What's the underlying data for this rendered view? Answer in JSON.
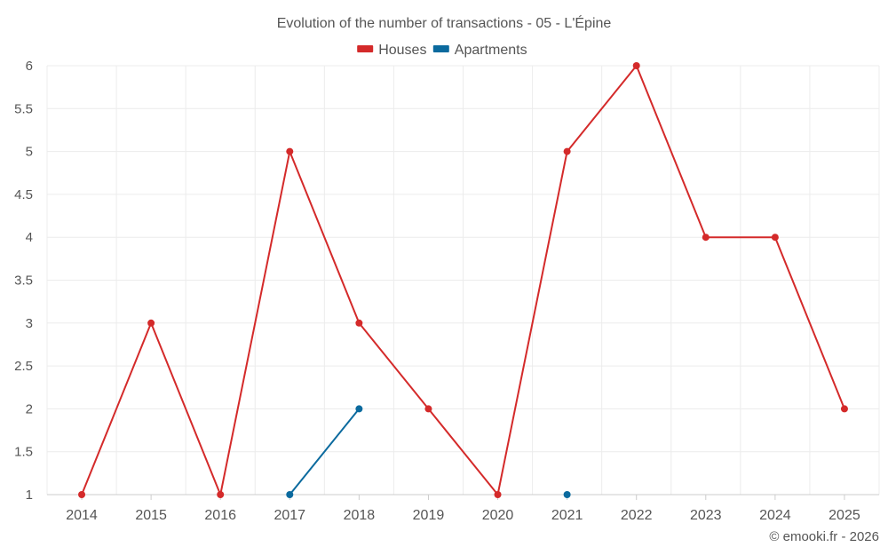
{
  "chart_data": {
    "type": "line",
    "title": "Evolution of the number of transactions - 05 - L'Épine",
    "categories": [
      "2014",
      "2015",
      "2016",
      "2017",
      "2018",
      "2019",
      "2020",
      "2021",
      "2022",
      "2023",
      "2024",
      "2025"
    ],
    "y_ticks": [
      "1",
      "1.5",
      "2",
      "2.5",
      "3",
      "3.5",
      "4",
      "4.5",
      "5",
      "5.5",
      "6"
    ],
    "ylim": [
      1,
      6
    ],
    "xlabel": "",
    "ylabel": "",
    "legend_position": "top-center",
    "series": [
      {
        "name": "Houses",
        "color": "#d42a2a",
        "values": [
          1,
          3,
          1,
          5,
          3,
          2,
          1,
          5,
          6,
          4,
          4,
          2
        ]
      },
      {
        "name": "Apartments",
        "color": "#0b6a9e",
        "values": [
          null,
          null,
          null,
          1,
          2,
          null,
          null,
          1,
          null,
          null,
          null,
          null
        ]
      }
    ]
  },
  "credit": "© emooki.fr - 2026"
}
